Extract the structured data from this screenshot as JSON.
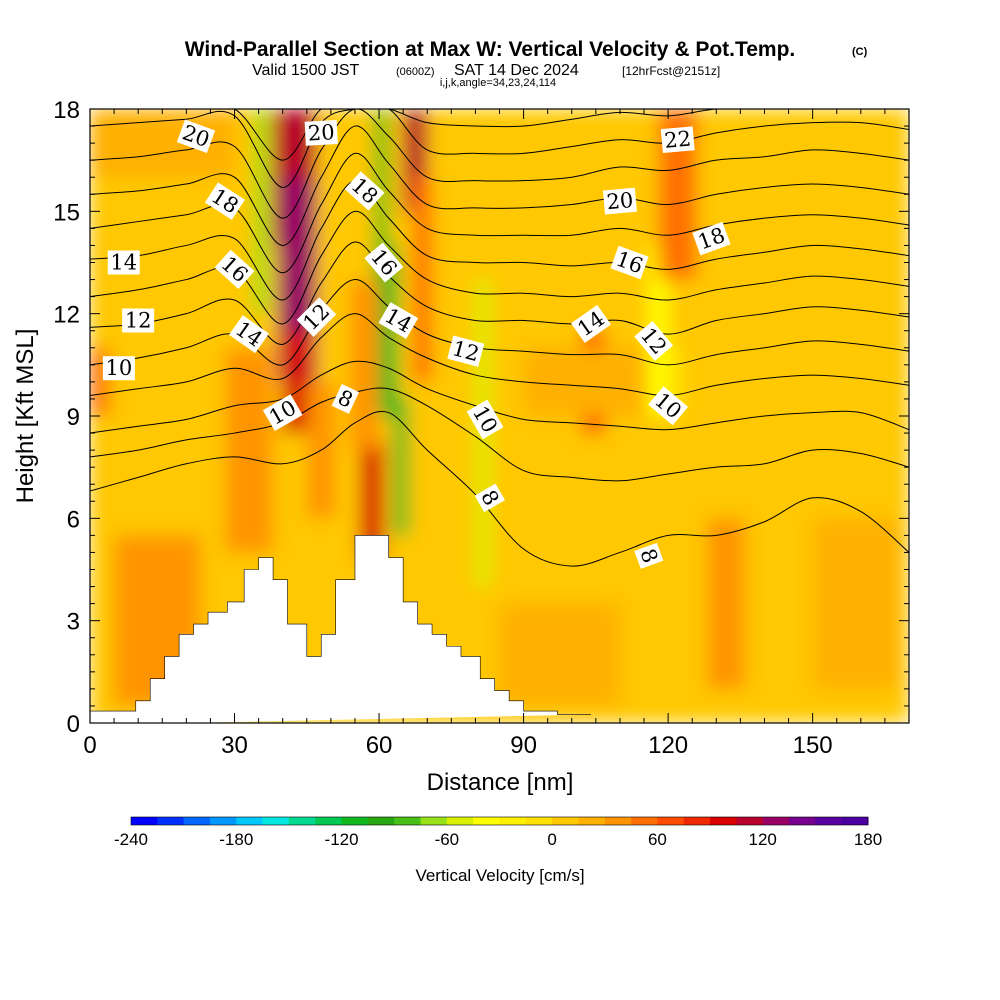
{
  "header": {
    "title": "Wind-Parallel Section at Max W: Vertical Velocity & Pot.Temp.",
    "copyright": "(C)",
    "valid_prefix": "Valid 1500 JST",
    "valid_utc": "(0600Z)",
    "valid_date": "SAT 14 Dec 2024",
    "forecast": "[12hrFcst@2151z]",
    "grid_info": "i,j,k,angle=34,23,24,114"
  },
  "chart_data": {
    "type": "heatmap",
    "xlabel": "Distance [nm]",
    "ylabel": "Height [Kft MSL]",
    "xlim": [
      0,
      170
    ],
    "ylim": [
      0,
      18
    ],
    "x_ticks": [
      0,
      30,
      60,
      90,
      120,
      150
    ],
    "y_ticks": [
      0,
      3,
      6,
      9,
      12,
      15,
      18
    ],
    "terrain": {
      "x": [
        0,
        9.5,
        9.5,
        12.5,
        12.5,
        15.5,
        15.5,
        18.5,
        18.5,
        21.5,
        21.5,
        24.5,
        24.5,
        28.5,
        28.5,
        32,
        32,
        35,
        35,
        38,
        38,
        41,
        41,
        45,
        45,
        48,
        48,
        51,
        51,
        55,
        55,
        58,
        58,
        62,
        62,
        65,
        65,
        68,
        68,
        71,
        71,
        74,
        74,
        77,
        77,
        81,
        81,
        84,
        84,
        87,
        87,
        90,
        90,
        94,
        94,
        97,
        97,
        101,
        101,
        104,
        104,
        170
      ],
      "y": [
        0.35,
        0.35,
        0.65,
        0.65,
        1.3,
        1.3,
        1.95,
        1.95,
        2.6,
        2.6,
        2.9,
        2.9,
        3.25,
        3.25,
        3.55,
        3.55,
        4.5,
        4.5,
        4.85,
        4.85,
        4.2,
        4.2,
        2.9,
        2.9,
        1.95,
        1.95,
        2.6,
        2.6,
        4.2,
        4.2,
        5.5,
        5.5,
        5.5,
        5.5,
        4.85,
        4.85,
        3.55,
        3.55,
        2.9,
        2.9,
        2.6,
        2.6,
        2.25,
        2.25,
        1.95,
        1.95,
        1.3,
        1.3,
        0.95,
        0.95,
        0.65,
        0.65,
        0.35,
        0.35,
        0.35,
        0.35,
        0.25,
        0.25,
        0.25,
        0.25,
        0.25
      ]
    },
    "vertical_velocity_units": "cm/s",
    "vertical_velocity_cells": [
      {
        "x": 0,
        "y": 9,
        "w": 170,
        "h": 9,
        "value": 5
      },
      {
        "x": 0,
        "y": 0,
        "w": 170,
        "h": 9,
        "value": 12
      },
      {
        "x": 5,
        "y": 0.5,
        "w": 18,
        "h": 5,
        "value": 30
      },
      {
        "x": 28,
        "y": 5,
        "w": 10,
        "h": 6,
        "value": 30
      },
      {
        "x": 38,
        "y": 14,
        "w": 9,
        "h": 4,
        "value": 110
      },
      {
        "x": 39,
        "y": 10,
        "w": 8,
        "h": 6,
        "value": 130
      },
      {
        "x": 40,
        "y": 8.5,
        "w": 6,
        "h": 3,
        "value": 95
      },
      {
        "x": 45,
        "y": 6,
        "w": 6,
        "h": 4,
        "value": 40
      },
      {
        "x": 56,
        "y": 4.8,
        "w": 5,
        "h": 3.5,
        "value": 95
      },
      {
        "x": 54,
        "y": 8,
        "w": 6,
        "h": 5,
        "value": 35
      },
      {
        "x": 65,
        "y": 15,
        "w": 5,
        "h": 3,
        "value": 110
      },
      {
        "x": 67,
        "y": 10,
        "w": 4,
        "h": 6,
        "value": 45
      },
      {
        "x": 34,
        "y": 12,
        "w": 3,
        "h": 6,
        "value": -75
      },
      {
        "x": 59,
        "y": 13,
        "w": 3,
        "h": 5,
        "value": -85
      },
      {
        "x": 60,
        "y": 9,
        "w": 4,
        "h": 5,
        "value": -110
      },
      {
        "x": 63,
        "y": 5.5,
        "w": 3,
        "h": 4,
        "value": -120
      },
      {
        "x": 80,
        "y": 4,
        "w": 3,
        "h": 9,
        "value": -50
      },
      {
        "x": 116,
        "y": 9,
        "w": 4,
        "h": 5,
        "value": -40
      },
      {
        "x": 102,
        "y": 8.5,
        "w": 5,
        "h": 3,
        "value": 60
      },
      {
        "x": 118,
        "y": 13,
        "w": 8,
        "h": 5,
        "value": 55
      },
      {
        "x": 120,
        "y": 9,
        "w": 3,
        "h": 2,
        "value": -10
      },
      {
        "x": 90,
        "y": 9,
        "w": 25,
        "h": 2,
        "value": 15
      },
      {
        "x": 85,
        "y": 0.5,
        "w": 25,
        "h": 3,
        "value": 20
      },
      {
        "x": 128,
        "y": 1,
        "w": 8,
        "h": 5,
        "value": 30
      },
      {
        "x": 145,
        "y": 4,
        "w": 5,
        "h": 3,
        "value": 5
      },
      {
        "x": 150,
        "y": 1,
        "w": 18,
        "h": 5,
        "value": 28
      },
      {
        "x": 0,
        "y": 16,
        "w": 30,
        "h": 2,
        "value": 15
      },
      {
        "x": 0,
        "y": 9,
        "w": 4,
        "h": 2,
        "value": 45
      }
    ],
    "theta_contours": [
      {
        "level": 8,
        "x": [
          0,
          10,
          20,
          30,
          40,
          48,
          55,
          62,
          70,
          80,
          90,
          100,
          110,
          120,
          130,
          140,
          150,
          160,
          170
        ],
        "y": [
          6.8,
          7.2,
          7.6,
          7.8,
          7.6,
          8.0,
          8.8,
          9.1,
          8.0,
          6.7,
          5.1,
          4.6,
          5.0,
          5.5,
          5.5,
          5.9,
          6.6,
          6.2,
          5.0
        ]
      },
      {
        "level": 9,
        "x": [
          0,
          10,
          20,
          30,
          40,
          48,
          55,
          62,
          70,
          80,
          90,
          100,
          110,
          120,
          130,
          140,
          150,
          160,
          170
        ],
        "y": [
          7.8,
          8.0,
          8.3,
          8.5,
          8.8,
          9.4,
          9.7,
          9.8,
          9.3,
          8.4,
          7.4,
          7.2,
          7.1,
          7.3,
          7.5,
          7.6,
          8.0,
          7.9,
          7.5
        ]
      },
      {
        "level": 10,
        "x": [
          0,
          10,
          20,
          30,
          40,
          48,
          55,
          62,
          70,
          80,
          90,
          100,
          110,
          120,
          130,
          140,
          150,
          160,
          170
        ],
        "y": [
          8.5,
          8.7,
          8.9,
          9.3,
          9.5,
          10.2,
          10.6,
          10.4,
          9.8,
          9.3,
          8.9,
          8.8,
          8.7,
          8.6,
          8.8,
          9.0,
          9.1,
          9.1,
          8.6
        ]
      },
      {
        "level": 11,
        "x": [
          0,
          10,
          20,
          30,
          40,
          48,
          55,
          62,
          70,
          80,
          90,
          100,
          110,
          120,
          130,
          140,
          150,
          160,
          170
        ],
        "y": [
          9.6,
          9.8,
          10.0,
          10.4,
          10.1,
          11.3,
          12.0,
          11.3,
          10.7,
          10.2,
          10.0,
          9.9,
          9.8,
          9.6,
          9.9,
          10.1,
          10.2,
          10.1,
          9.9
        ]
      },
      {
        "level": 12,
        "x": [
          0,
          10,
          20,
          30,
          40,
          48,
          55,
          62,
          70,
          80,
          90,
          100,
          110,
          120,
          130,
          140,
          150,
          160,
          170
        ],
        "y": [
          10.5,
          10.7,
          11.0,
          11.4,
          10.5,
          12.1,
          13.0,
          12.2,
          11.4,
          11.0,
          10.9,
          10.8,
          10.8,
          10.5,
          10.8,
          11.0,
          11.2,
          11.1,
          10.9
        ]
      },
      {
        "level": 13,
        "x": [
          0,
          10,
          20,
          30,
          40,
          48,
          55,
          62,
          70,
          80,
          90,
          100,
          110,
          120,
          130,
          140,
          150,
          160,
          170
        ],
        "y": [
          11.6,
          11.7,
          12.0,
          12.4,
          11.1,
          12.9,
          14.1,
          13.1,
          12.2,
          11.8,
          11.8,
          11.7,
          11.8,
          11.4,
          11.8,
          12.0,
          12.2,
          12.1,
          11.9
        ]
      },
      {
        "level": 14,
        "x": [
          0,
          10,
          20,
          30,
          40,
          48,
          55,
          62,
          70,
          80,
          90,
          100,
          110,
          120,
          130,
          140,
          150,
          160,
          170
        ],
        "y": [
          12.5,
          12.7,
          13.0,
          13.3,
          11.7,
          13.7,
          15.0,
          14.0,
          13.0,
          12.6,
          12.6,
          12.5,
          12.6,
          12.4,
          12.7,
          12.9,
          13.1,
          13.0,
          12.8
        ]
      },
      {
        "level": 15,
        "x": [
          0,
          10,
          20,
          30,
          40,
          48,
          55,
          62,
          70,
          80,
          90,
          100,
          110,
          120,
          130,
          140,
          150,
          160,
          170
        ],
        "y": [
          13.6,
          13.7,
          14.0,
          14.2,
          12.4,
          14.5,
          15.9,
          14.8,
          13.7,
          13.5,
          13.5,
          13.4,
          13.5,
          13.3,
          13.6,
          13.8,
          14.0,
          13.9,
          13.7
        ]
      },
      {
        "level": 16,
        "x": [
          0,
          10,
          20,
          30,
          40,
          48,
          55,
          62,
          70,
          80,
          90,
          100,
          110,
          120,
          130,
          140,
          150,
          160,
          170
        ],
        "y": [
          14.5,
          14.7,
          14.9,
          15.1,
          13.2,
          15.2,
          16.7,
          15.6,
          14.5,
          14.3,
          14.3,
          14.3,
          14.5,
          14.3,
          14.6,
          14.8,
          14.9,
          14.8,
          14.6
        ]
      },
      {
        "level": 17,
        "x": [
          0,
          10,
          20,
          30,
          40,
          48,
          55,
          62,
          70,
          80,
          90,
          100,
          110,
          120,
          130,
          140,
          150,
          160,
          170
        ],
        "y": [
          15.5,
          15.6,
          15.8,
          16.0,
          14.0,
          16.0,
          17.5,
          16.4,
          15.2,
          15.1,
          15.1,
          15.2,
          15.4,
          15.2,
          15.5,
          15.7,
          15.8,
          15.7,
          15.5
        ]
      },
      {
        "level": 18,
        "x": [
          0,
          10,
          20,
          30,
          40,
          48,
          55,
          62,
          70,
          80,
          90,
          100,
          110,
          120,
          130,
          140,
          150,
          160,
          170
        ],
        "y": [
          16.5,
          16.6,
          16.8,
          16.9,
          14.8,
          16.8,
          18.0,
          17.2,
          16.0,
          15.9,
          15.9,
          16.0,
          16.3,
          16.2,
          16.5,
          16.6,
          16.8,
          16.7,
          16.5
        ]
      },
      {
        "level": 19,
        "x": [
          0,
          10,
          20,
          30,
          40,
          48,
          55,
          62,
          70,
          80,
          90,
          100,
          110,
          120,
          130,
          140,
          150,
          160,
          170
        ],
        "y": [
          17.5,
          17.6,
          17.7,
          17.8,
          15.7,
          17.6,
          18.0,
          18.0,
          16.8,
          16.7,
          16.7,
          16.9,
          17.1,
          17.0,
          17.3,
          17.5,
          17.6,
          17.6,
          17.4
        ]
      },
      {
        "level": 20,
        "x": [
          0,
          10,
          20,
          30,
          40,
          48,
          55,
          62,
          70,
          80,
          90,
          100,
          110,
          120,
          130,
          140,
          150,
          160,
          170
        ],
        "y": [
          18.0,
          18.0,
          18.0,
          18.0,
          16.5,
          18.0,
          18.0,
          18.0,
          17.6,
          17.5,
          17.5,
          17.7,
          17.9,
          17.8,
          18.0,
          18.0,
          18.0,
          18.0,
          18.0
        ]
      }
    ],
    "contour_labels": [
      {
        "text": "20",
        "x": 22,
        "y": 17.2,
        "angle": 20
      },
      {
        "text": "20",
        "x": 48,
        "y": 17.3,
        "angle": -3
      },
      {
        "text": "22",
        "x": 122,
        "y": 17.1,
        "angle": -5
      },
      {
        "text": "18",
        "x": 28,
        "y": 15.3,
        "angle": 33
      },
      {
        "text": "18",
        "x": 57,
        "y": 15.6,
        "angle": 42
      },
      {
        "text": "20",
        "x": 110,
        "y": 15.3,
        "angle": -5
      },
      {
        "text": "14",
        "x": 7,
        "y": 13.5,
        "angle": 0
      },
      {
        "text": "16",
        "x": 30,
        "y": 13.3,
        "angle": 42
      },
      {
        "text": "16",
        "x": 61,
        "y": 13.5,
        "angle": 50
      },
      {
        "text": "16",
        "x": 112,
        "y": 13.5,
        "angle": 20
      },
      {
        "text": "18",
        "x": 129,
        "y": 14.2,
        "angle": -20
      },
      {
        "text": "12",
        "x": 10,
        "y": 11.8,
        "angle": 0
      },
      {
        "text": "14",
        "x": 33,
        "y": 11.4,
        "angle": 35
      },
      {
        "text": "12",
        "x": 47,
        "y": 11.9,
        "angle": -45
      },
      {
        "text": "14",
        "x": 64,
        "y": 11.8,
        "angle": 30
      },
      {
        "text": "12",
        "x": 78,
        "y": 10.9,
        "angle": 15
      },
      {
        "text": "14",
        "x": 104,
        "y": 11.7,
        "angle": -35
      },
      {
        "text": "12",
        "x": 117,
        "y": 11.2,
        "angle": 50
      },
      {
        "text": "10",
        "x": 6,
        "y": 10.4,
        "angle": 0
      },
      {
        "text": "10",
        "x": 40,
        "y": 9.1,
        "angle": -30
      },
      {
        "text": "8",
        "x": 53,
        "y": 9.5,
        "angle": 25
      },
      {
        "text": "10",
        "x": 82,
        "y": 8.9,
        "angle": 60
      },
      {
        "text": "10",
        "x": 120,
        "y": 9.3,
        "angle": 40
      },
      {
        "text": "8",
        "x": 83,
        "y": 6.6,
        "angle": 60
      },
      {
        "text": "8",
        "x": 116,
        "y": 4.9,
        "angle": 70
      }
    ],
    "colorbar": {
      "label": "Vertical Velocity [cm/s]",
      "min": -240,
      "max": 180,
      "step": 15,
      "tick_values": [
        -240,
        -180,
        -120,
        -60,
        0,
        60,
        120,
        180
      ],
      "tick_labels": [
        "-240",
        "-180",
        "-120",
        "-60",
        "0",
        "60",
        "120",
        "180"
      ],
      "colors": [
        "#0000ff",
        "#0030ff",
        "#0068ff",
        "#0098ff",
        "#00c8ff",
        "#00e8e0",
        "#00d890",
        "#00c850",
        "#10b820",
        "#28a810",
        "#48c018",
        "#98e018",
        "#d8f000",
        "#ffff00",
        "#fff000",
        "#ffe000",
        "#ffc800",
        "#ffb000",
        "#ff9400",
        "#ff7000",
        "#ff4c00",
        "#f02800",
        "#d80000",
        "#b8002c",
        "#980064",
        "#780090",
        "#5a00a0",
        "#4a00a0"
      ]
    }
  }
}
